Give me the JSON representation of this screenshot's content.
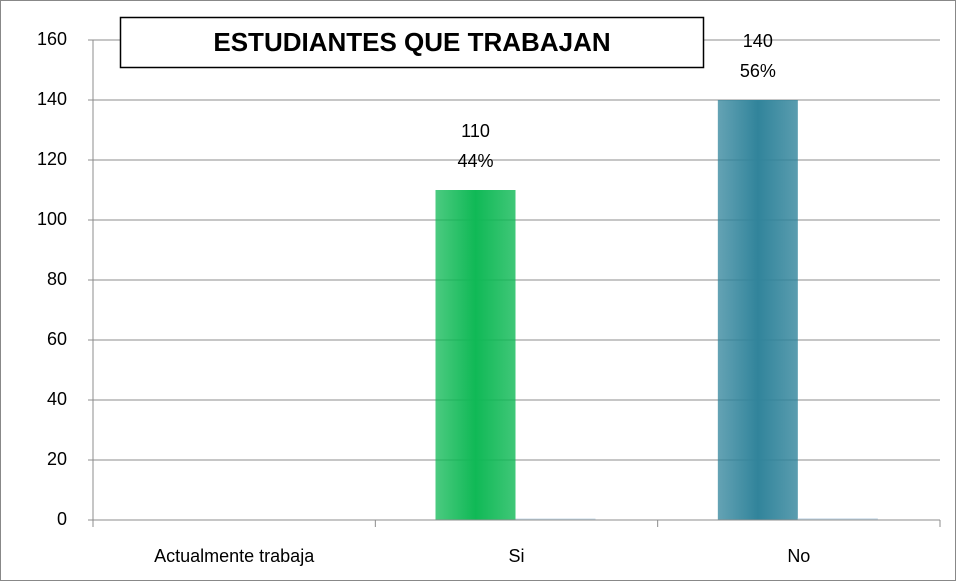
{
  "chart_data": {
    "type": "bar",
    "title": "ESTUDIANTES QUE TRABAJAN",
    "categories": [
      "Actualmente trabaja",
      "Si",
      "No"
    ],
    "series": [
      {
        "colors": [
          null,
          "#10b956",
          "#31849b"
        ],
        "values": [
          null,
          110,
          140
        ],
        "value_labels": [
          null,
          "110",
          "140"
        ]
      },
      {
        "color": "#c9dbe9",
        "values": [
          null,
          0.44,
          0.56
        ],
        "value_labels": [
          null,
          "44%",
          "56%"
        ]
      }
    ],
    "ylim": [
      0,
      160
    ],
    "yticks": [
      0,
      20,
      40,
      60,
      80,
      100,
      120,
      140,
      160
    ],
    "grid": true
  }
}
